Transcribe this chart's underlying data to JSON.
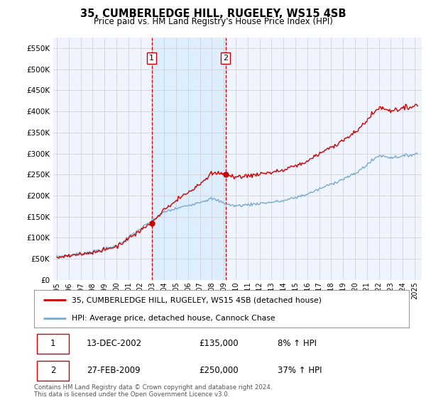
{
  "title": "35, CUMBERLEDGE HILL, RUGELEY, WS15 4SB",
  "subtitle": "Price paid vs. HM Land Registry's House Price Index (HPI)",
  "legend_line1": "35, CUMBERLEDGE HILL, RUGELEY, WS15 4SB (detached house)",
  "legend_line2": "HPI: Average price, detached house, Cannock Chase",
  "sale1_date": "13-DEC-2002",
  "sale1_price": "£135,000",
  "sale1_hpi": "8% ↑ HPI",
  "sale2_date": "27-FEB-2009",
  "sale2_price": "£250,000",
  "sale2_hpi": "37% ↑ HPI",
  "footer": "Contains HM Land Registry data © Crown copyright and database right 2024.\nThis data is licensed under the Open Government Licence v3.0.",
  "red_line_color": "#cc0000",
  "blue_line_color": "#7aaacc",
  "vline_color": "#cc0000",
  "bg_color": "#ffffff",
  "plot_bg_color": "#f0f4ff",
  "shade_color": "#ddeeff",
  "grid_color": "#cccccc",
  "ylim": [
    0,
    575000
  ],
  "yticks": [
    0,
    50000,
    100000,
    150000,
    200000,
    250000,
    300000,
    350000,
    400000,
    450000,
    500000,
    550000
  ],
  "sale1_year": 2002.95,
  "sale1_value": 135000,
  "sale2_year": 2009.15,
  "sale2_value": 250000,
  "xstart": 1994.7,
  "xend": 2025.6
}
